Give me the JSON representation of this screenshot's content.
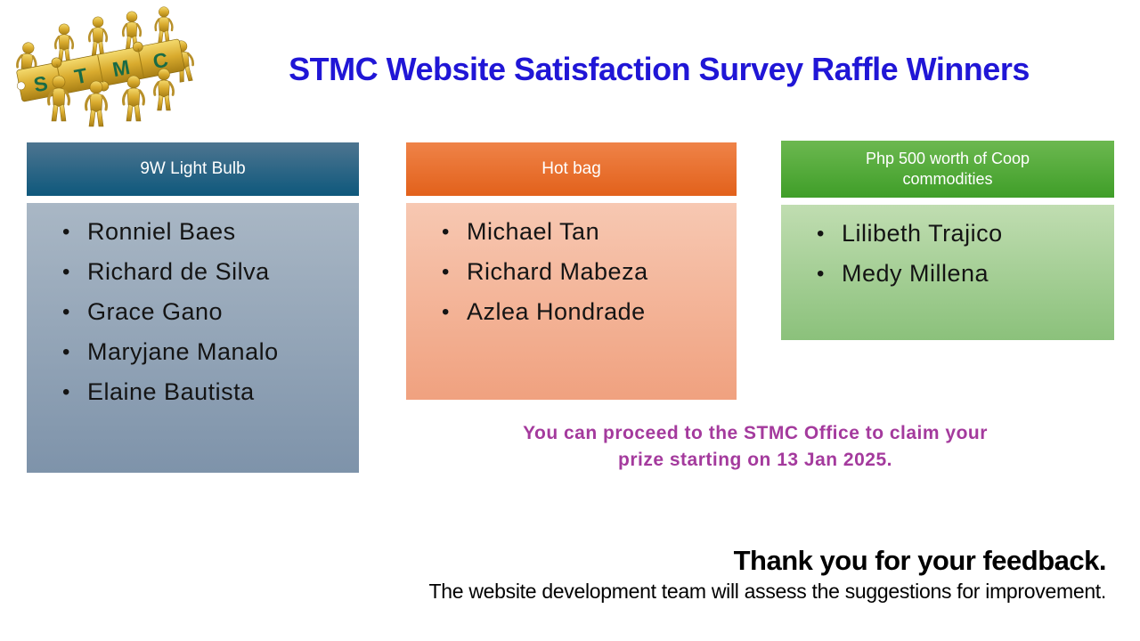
{
  "brand": {
    "logo_name": "stmc-puzzle-people-logo",
    "logo_letters": [
      "S",
      "T",
      "M",
      "C"
    ],
    "logo_gold": "#D9AB2E",
    "logo_letter_color": "#1A6B45"
  },
  "title": {
    "text": "STMC Website Satisfaction Survey Raffle Winners",
    "color": "#2016D6"
  },
  "columns": [
    {
      "prize": "9W Light Bulb",
      "winners": [
        "Ronniel Baes",
        "Richard de Silva",
        "Grace Gano",
        "Maryjane Manalo",
        "Elaine Bautista"
      ],
      "colors": {
        "header_top": "#4E7590",
        "header_bottom": "#0E587C",
        "body_top": "#A9B7C5",
        "body_bottom": "#7E93AA"
      }
    },
    {
      "prize": "Hot bag",
      "winners": [
        "Michael Tan",
        "Richard Mabeza",
        "Azlea Hondrade"
      ],
      "colors": {
        "header_top": "#EF8348",
        "header_bottom": "#E2611B",
        "body_top": "#F7C8B2",
        "body_bottom": "#F0A17F"
      }
    },
    {
      "prize": "Php 500 worth of Coop commodities",
      "winners": [
        "Lilibeth Trajico",
        "Medy Millena"
      ],
      "colors": {
        "header_top": "#6CB850",
        "header_bottom": "#3F9E28",
        "body_top": "#C0DDB1",
        "body_bottom": "#8BC17B"
      }
    }
  ],
  "claim_note": {
    "line1": "You can proceed to the STMC Office to claim your",
    "line2": "prize starting on 13 Jan 2025.",
    "color": "#A43A9D"
  },
  "footer": {
    "heading": "Thank you for your feedback.",
    "subtext": "The website development team will assess the suggestions for improvement."
  }
}
